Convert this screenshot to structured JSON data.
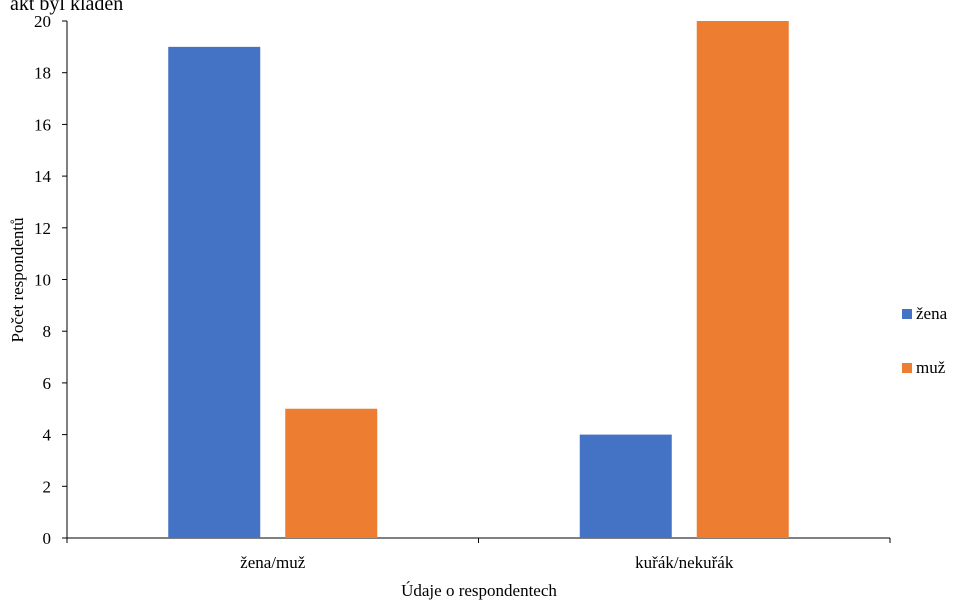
{
  "top_text": "ákt byl kladen",
  "chart_data": {
    "type": "bar",
    "title": "",
    "xlabel": "Údaje o respondentech",
    "ylabel": "Počet respondentů",
    "categories": [
      "žena/muž",
      "kuřák/nekuřák"
    ],
    "series": [
      {
        "name": "žena",
        "values": [
          19,
          4
        ],
        "color": "#4472C4"
      },
      {
        "name": "muž",
        "values": [
          5,
          20
        ],
        "color": "#ED7D31"
      }
    ],
    "ylim": [
      0,
      20
    ],
    "yticks": [
      0,
      2,
      4,
      6,
      8,
      10,
      12,
      14,
      16,
      18,
      20
    ],
    "grid": false,
    "legend_position": "right"
  }
}
